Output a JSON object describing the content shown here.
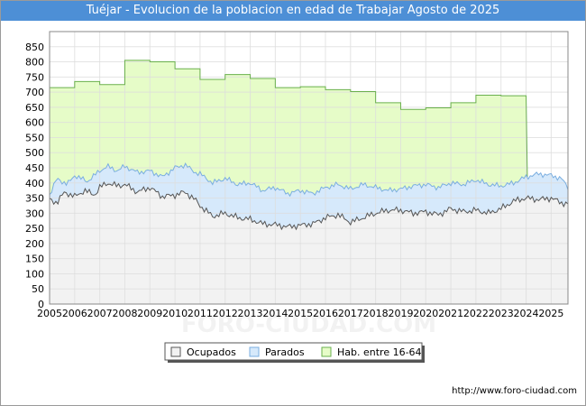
{
  "title": "Tuéjar - Evolucion de la poblacion en edad de Trabajar Agosto de 2025",
  "source": "http://www.foro-ciudad.com",
  "watermark": "FORO-CIUDAD.COM",
  "colors": {
    "title_bg": "#4d8fd6",
    "hab_fill": "#e6fcc8",
    "hab_line": "#6ab04c",
    "parados_fill": "#d6e9fb",
    "parados_line": "#7aaee0",
    "ocupados_fill": "#f2f2f2",
    "ocupados_line": "#555555",
    "grid": "#dddddd"
  },
  "chart_data": {
    "type": "area",
    "title": "Tuéjar - Evolucion de la poblacion en edad de Trabajar Agosto de 2025",
    "xlim": [
      2005,
      2025.67
    ],
    "ylim": [
      0,
      900
    ],
    "yticks": [
      0,
      50,
      100,
      150,
      200,
      250,
      300,
      350,
      400,
      450,
      500,
      550,
      600,
      650,
      700,
      750,
      800,
      850
    ],
    "xticks": [
      "2005",
      "2006",
      "2007",
      "2008",
      "2009",
      "2010",
      "2011",
      "2012",
      "2013",
      "2014",
      "2015",
      "2016",
      "2017",
      "2018",
      "2019",
      "2020",
      "2021",
      "2022",
      "2023",
      "2024",
      "2025"
    ],
    "grid": true,
    "legend_position": "bottom",
    "legend": [
      "Ocupados",
      "Parados",
      "Hab. entre 16-64"
    ],
    "hab_annual": {
      "years": [
        2005,
        2006,
        2007,
        2008,
        2009,
        2010,
        2011,
        2012,
        2013,
        2014,
        2015,
        2016,
        2017,
        2018,
        2019,
        2020,
        2021,
        2022,
        2023
      ],
      "values": [
        715,
        735,
        725,
        805,
        800,
        777,
        742,
        758,
        745,
        715,
        718,
        708,
        702,
        665,
        643,
        648,
        665,
        690,
        688
      ]
    },
    "parados_points": [
      [
        2005.0,
        360
      ],
      [
        2005.3,
        415
      ],
      [
        2005.7,
        395
      ],
      [
        2006.0,
        425
      ],
      [
        2006.5,
        405
      ],
      [
        2007.0,
        440
      ],
      [
        2007.3,
        455
      ],
      [
        2007.7,
        440
      ],
      [
        2008.0,
        455
      ],
      [
        2008.5,
        435
      ],
      [
        2009.0,
        440
      ],
      [
        2009.5,
        420
      ],
      [
        2010.0,
        450
      ],
      [
        2010.4,
        460
      ],
      [
        2010.8,
        435
      ],
      [
        2011.0,
        430
      ],
      [
        2011.5,
        400
      ],
      [
        2012.0,
        415
      ],
      [
        2012.5,
        395
      ],
      [
        2013.0,
        400
      ],
      [
        2013.5,
        375
      ],
      [
        2014.0,
        385
      ],
      [
        2014.5,
        365
      ],
      [
        2015.0,
        375
      ],
      [
        2015.5,
        365
      ],
      [
        2016.0,
        385
      ],
      [
        2016.5,
        395
      ],
      [
        2017.0,
        380
      ],
      [
        2017.5,
        395
      ],
      [
        2018.0,
        385
      ],
      [
        2018.5,
        375
      ],
      [
        2019.0,
        380
      ],
      [
        2019.5,
        390
      ],
      [
        2020.0,
        395
      ],
      [
        2020.5,
        385
      ],
      [
        2021.0,
        400
      ],
      [
        2021.5,
        395
      ],
      [
        2022.0,
        410
      ],
      [
        2022.5,
        395
      ],
      [
        2023.0,
        390
      ],
      [
        2023.5,
        400
      ],
      [
        2024.0,
        420
      ],
      [
        2024.5,
        430
      ],
      [
        2025.0,
        425
      ],
      [
        2025.4,
        415
      ],
      [
        2025.67,
        385
      ]
    ],
    "ocupados_points": [
      [
        2005.0,
        345
      ],
      [
        2005.3,
        335
      ],
      [
        2005.6,
        370
      ],
      [
        2006.0,
        355
      ],
      [
        2006.4,
        375
      ],
      [
        2006.8,
        360
      ],
      [
        2007.0,
        385
      ],
      [
        2007.3,
        400
      ],
      [
        2007.7,
        390
      ],
      [
        2008.0,
        395
      ],
      [
        2008.5,
        370
      ],
      [
        2009.0,
        385
      ],
      [
        2009.5,
        355
      ],
      [
        2010.0,
        360
      ],
      [
        2010.4,
        370
      ],
      [
        2010.8,
        345
      ],
      [
        2011.0,
        325
      ],
      [
        2011.5,
        290
      ],
      [
        2012.0,
        300
      ],
      [
        2012.5,
        285
      ],
      [
        2013.0,
        280
      ],
      [
        2013.5,
        265
      ],
      [
        2014.0,
        262
      ],
      [
        2014.5,
        255
      ],
      [
        2015.0,
        260
      ],
      [
        2015.5,
        265
      ],
      [
        2016.0,
        285
      ],
      [
        2016.5,
        295
      ],
      [
        2017.0,
        270
      ],
      [
        2017.5,
        285
      ],
      [
        2018.0,
        300
      ],
      [
        2018.5,
        310
      ],
      [
        2019.0,
        310
      ],
      [
        2019.5,
        300
      ],
      [
        2020.0,
        305
      ],
      [
        2020.5,
        295
      ],
      [
        2021.0,
        315
      ],
      [
        2021.5,
        305
      ],
      [
        2022.0,
        310
      ],
      [
        2022.5,
        300
      ],
      [
        2023.0,
        315
      ],
      [
        2023.5,
        340
      ],
      [
        2024.0,
        350
      ],
      [
        2024.5,
        345
      ],
      [
        2025.0,
        350
      ],
      [
        2025.4,
        335
      ],
      [
        2025.67,
        330
      ]
    ]
  }
}
